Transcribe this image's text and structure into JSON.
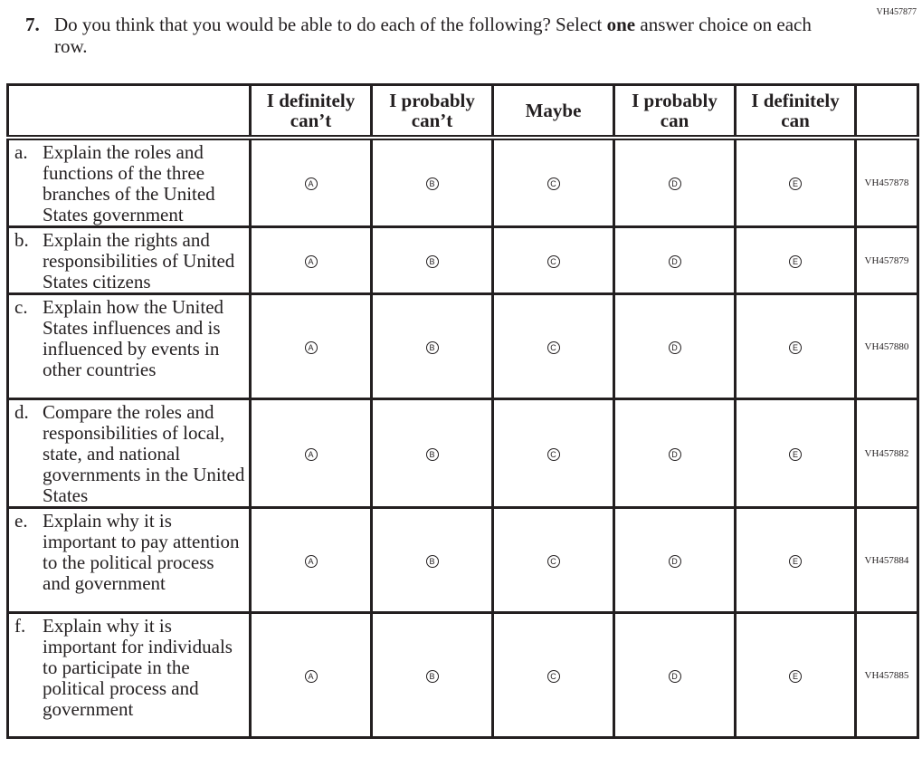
{
  "form_id": "VH457877",
  "question": {
    "number": "7.",
    "text_before": "Do you think that you would be able to do each of the following? Select ",
    "emphasis": "one",
    "text_after": " answer choice on each row."
  },
  "columns": [
    "I definitely can’t",
    "I probably can’t",
    "Maybe",
    "I probably can",
    "I definitely can"
  ],
  "options": [
    "A",
    "B",
    "C",
    "D",
    "E"
  ],
  "rows": [
    {
      "letter": "a.",
      "text": "Explain the roles and functions of the three branches of the United States government",
      "code": "VH457878"
    },
    {
      "letter": "b.",
      "text": "Explain the rights and responsibilities of United States citizens",
      "code": "VH457879"
    },
    {
      "letter": "c.",
      "text": "Explain how the United States influences and is influenced by events in other countries",
      "code": "VH457880"
    },
    {
      "letter": "d.",
      "text": "Compare the roles and responsibilities of local, state, and national governments in the United States",
      "code": "VH457882"
    },
    {
      "letter": "e.",
      "text": "Explain why it is important to pay attention to the political process and government",
      "code": "VH457884"
    },
    {
      "letter": "f.",
      "text": "Explain why it is important for individuals to participate in the political process and government",
      "code": "VH457885"
    }
  ]
}
